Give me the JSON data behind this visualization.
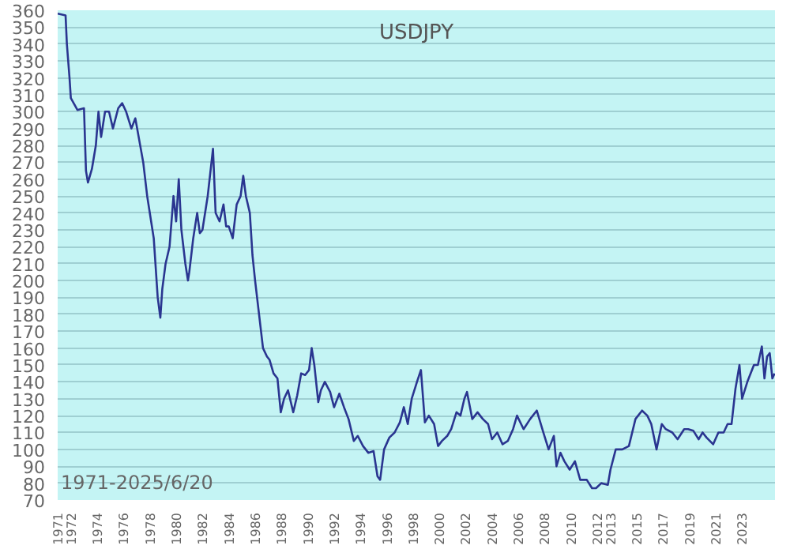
{
  "chart_data": {
    "type": "line",
    "title": "USDJPY",
    "annotations": [
      "1971-2025/6/20"
    ],
    "xlim": [
      1971,
      2025.5
    ],
    "ylim": [
      70,
      360
    ],
    "xticks": [
      1971,
      1972,
      1974,
      1976,
      1978,
      1980,
      1982,
      1984,
      1986,
      1988,
      1990,
      1992,
      1994,
      1996,
      1998,
      2000,
      2002,
      2004,
      2006,
      2008,
      2010,
      2012,
      2013,
      2015,
      2017,
      2019,
      2021,
      2023
    ],
    "yticks": [
      70,
      80,
      90,
      100,
      110,
      120,
      130,
      140,
      150,
      160,
      170,
      180,
      190,
      200,
      210,
      220,
      230,
      240,
      250,
      260,
      270,
      280,
      290,
      300,
      310,
      320,
      330,
      340,
      350,
      360
    ],
    "grid": "y",
    "marker": "none",
    "line_style": "solid",
    "series": [
      {
        "color": "#2a3590",
        "x": [
          1971.0,
          1971.6,
          1971.7,
          1971.9,
          1972.0,
          1972.5,
          1973.0,
          1973.15,
          1973.3,
          1973.6,
          1973.9,
          1974.1,
          1974.3,
          1974.6,
          1974.9,
          1975.2,
          1975.6,
          1975.9,
          1976.2,
          1976.6,
          1976.9,
          1977.2,
          1977.5,
          1977.8,
          1978.0,
          1978.3,
          1978.6,
          1978.8,
          1978.95,
          1979.2,
          1979.5,
          1979.8,
          1980.0,
          1980.2,
          1980.4,
          1980.7,
          1980.9,
          1981.0,
          1981.3,
          1981.6,
          1981.8,
          1982.0,
          1982.4,
          1982.8,
          1983.0,
          1983.3,
          1983.6,
          1983.8,
          1984.0,
          1984.3,
          1984.6,
          1984.9,
          1985.1,
          1985.3,
          1985.6,
          1985.8,
          1986.0,
          1986.3,
          1986.6,
          1986.9,
          1987.1,
          1987.4,
          1987.7,
          1987.95,
          1988.2,
          1988.5,
          1988.9,
          1989.2,
          1989.5,
          1989.8,
          1990.1,
          1990.3,
          1990.5,
          1990.8,
          1991.0,
          1991.3,
          1991.7,
          1992.0,
          1992.4,
          1992.8,
          1993.1,
          1993.5,
          1993.8,
          1994.2,
          1994.6,
          1995.0,
          1995.3,
          1995.5,
          1995.8,
          1996.2,
          1996.6,
          1997.0,
          1997.3,
          1997.6,
          1997.9,
          1998.3,
          1998.6,
          1998.9,
          1999.2,
          1999.6,
          1999.9,
          2000.2,
          2000.6,
          2000.9,
          2001.3,
          2001.6,
          2001.9,
          2002.1,
          2002.5,
          2002.9,
          2003.3,
          2003.7,
          2004.0,
          2004.4,
          2004.8,
          2005.2,
          2005.6,
          2005.9,
          2006.4,
          2006.9,
          2007.4,
          2007.9,
          2008.3,
          2008.7,
          2008.9,
          2009.2,
          2009.5,
          2009.9,
          2010.3,
          2010.7,
          2011.2,
          2011.6,
          2011.9,
          2012.3,
          2012.8,
          2013.0,
          2013.4,
          2013.9,
          2014.4,
          2014.9,
          2015.4,
          2015.8,
          2016.1,
          2016.5,
          2016.9,
          2017.2,
          2017.7,
          2018.1,
          2018.6,
          2018.9,
          2019.3,
          2019.7,
          2020.0,
          2020.3,
          2020.8,
          2021.2,
          2021.6,
          2021.9,
          2022.2,
          2022.5,
          2022.8,
          2023.0,
          2023.4,
          2023.9,
          2024.2,
          2024.5,
          2024.7,
          2024.9,
          2025.1,
          2025.3,
          2025.47
        ],
        "values": [
          358,
          357,
          340,
          320,
          308,
          301,
          302,
          265,
          258,
          266,
          280,
          300,
          285,
          300,
          300,
          290,
          302,
          305,
          300,
          290,
          296,
          283,
          270,
          250,
          240,
          225,
          190,
          178,
          195,
          210,
          220,
          250,
          235,
          260,
          230,
          210,
          200,
          205,
          225,
          240,
          228,
          230,
          250,
          278,
          240,
          235,
          245,
          232,
          232,
          225,
          245,
          250,
          262,
          250,
          240,
          215,
          200,
          180,
          160,
          155,
          153,
          145,
          142,
          122,
          130,
          135,
          122,
          132,
          145,
          144,
          147,
          160,
          150,
          128,
          135,
          140,
          134,
          125,
          133,
          124,
          118,
          105,
          108,
          102,
          98,
          99,
          84,
          82,
          100,
          107,
          110,
          116,
          125,
          115,
          130,
          140,
          147,
          116,
          120,
          115,
          102,
          105,
          108,
          112,
          122,
          120,
          130,
          134,
          118,
          122,
          118,
          115,
          106,
          110,
          103,
          105,
          112,
          120,
          112,
          118,
          123,
          110,
          100,
          108,
          90,
          98,
          93,
          88,
          93,
          82,
          82,
          77,
          77,
          80,
          79,
          88,
          100,
          100,
          102,
          118,
          123,
          120,
          115,
          100,
          115,
          112,
          110,
          106,
          112,
          112,
          111,
          106,
          110,
          107,
          103,
          110,
          110,
          115,
          115,
          136,
          150,
          130,
          140,
          150,
          150,
          161,
          142,
          155,
          157,
          142,
          145
        ]
      }
    ]
  }
}
